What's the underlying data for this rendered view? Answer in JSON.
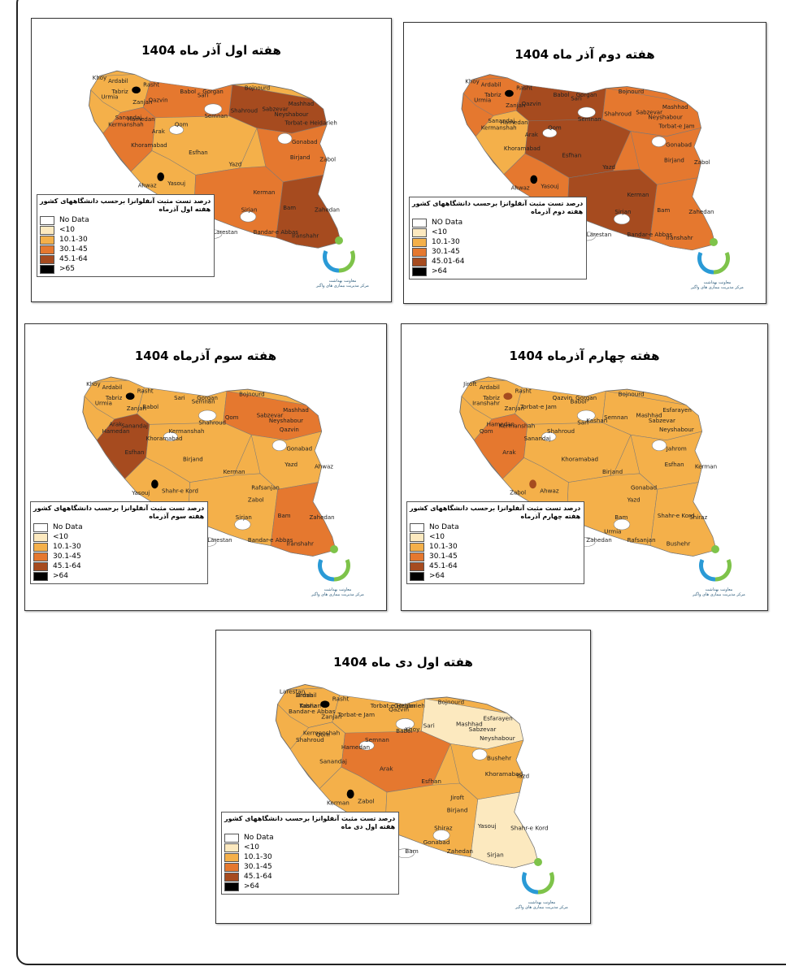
{
  "panels": [
    {
      "title": "هفته اول آذر ماه 1404",
      "legend_caption": "درصد تست مثبت آنفلوانزا برحسب دانشگاههای کشور",
      "legend_sub": "هفته اول آذرماه",
      "legend_items": [
        "No Data",
        "<10",
        "10.1-30",
        "30.1-45",
        "45.1-64",
        ">65"
      ],
      "cities": [
        "Ardabil",
        "Tabriz",
        "Rasht",
        "Zanjan",
        "Gorgan",
        "Bojnourd",
        "Mashhad",
        "Sabzevar",
        "Neyshabour",
        "Torbat-e Heidarieh",
        "Qazvin",
        "Babol",
        "Sari",
        "Semnan",
        "Shahroud",
        "Qom",
        "Kermanshah",
        "Hamedan",
        "Sanandaj",
        "Arak",
        "Khoramabad",
        "Esfhan",
        "Birjand",
        "Yazd",
        "Kerman",
        "Zabol",
        "Ahwaz",
        "Yasouj",
        "Shiraz",
        "Bam",
        "Zahedan",
        "Sirjan",
        "Larestan",
        "Bandar-e Abbas",
        "Iranshahr",
        "Gonabad",
        "Khoy",
        "Urmia"
      ]
    },
    {
      "title": "هفته دوم آذر ماه 1404",
      "legend_caption": "درصد تست مثبت آنفلوانزا برحسب دانشگاههای کشور",
      "legend_sub": "هفته دوم آذرماه",
      "legend_items": [
        "NO Data",
        "<10",
        "10.1-30",
        "30.1-45",
        "45.01-64",
        ">64"
      ],
      "cities": [
        "Ardabil",
        "Tabriz",
        "Rasht",
        "Zanjan",
        "Gorgan",
        "Bojnourd",
        "Mashhad",
        "Sabzevar",
        "Neyshabour",
        "Torbat-e Jam",
        "Qazvin",
        "Babol",
        "Sari",
        "Semnan",
        "Shahroud",
        "Qom",
        "Kermanshah",
        "Hamedan",
        "Sanandaj",
        "Arak",
        "Khoramabad",
        "Esfhan",
        "Birjand",
        "Yazd",
        "Kerman",
        "Zabol",
        "Ahwaz",
        "Yasouj",
        "Shiraz",
        "Bam",
        "Zahedan",
        "Sirjan",
        "Larestan",
        "Bandar-e Abbas",
        "Iranshahr",
        "Gonabad",
        "Khoy",
        "Urmia"
      ]
    },
    {
      "title": "هفته سوم آذرماه 1404",
      "legend_caption": "درصد تست مثبت آنفلوانزا برحسب دانشگاههای کشور",
      "legend_sub": "هفته سوم آذرماه",
      "legend_items": [
        "No Data",
        "<10",
        "10.1-30",
        "30.1-45",
        "45.1-64",
        ">64"
      ],
      "cities": [
        "Ardabil",
        "Tabriz",
        "Rasht",
        "Zanjan",
        "Gorgan",
        "Bojnourd",
        "Mashhad",
        "Sabzevar",
        "Neyshabour",
        "Qazvin",
        "Babol",
        "Sari",
        "Semnan",
        "Shahroud",
        "Qom",
        "Kermanshah",
        "Hamedan",
        "Sanandaj",
        "Arak",
        "Khoramabad",
        "Esfhan",
        "Birjand",
        "Yazd",
        "Kerman",
        "Zabol",
        "Ahwaz",
        "Yasouj",
        "Shahr-e Kord",
        "Shiraz",
        "Bam",
        "Zahedan",
        "Sirjan",
        "Larestan",
        "Bandar-e Abbas",
        "Iranshahr",
        "Gonabad",
        "Khoy",
        "Urmia",
        "Rafsanjan",
        "Bushehr"
      ]
    },
    {
      "title": "هفته چهارم آذرماه 1404",
      "legend_caption": "درصد تست مثبت آنفلوانزا برحسب دانشگاههای کشور",
      "legend_sub": "هفته چهارم آذرماه",
      "legend_items": [
        "No Data",
        "<10",
        "10.1-30",
        "30.1-45",
        "45.1-64",
        ">64"
      ],
      "cities": [
        "Ardabil",
        "Tabriz",
        "Rasht",
        "Zanjan",
        "Gorgan",
        "Bojnourd",
        "Esfarayen",
        "Mashhad",
        "Sabzevar",
        "Neyshabour",
        "Torbat-e Jam",
        "Qazvin",
        "Babol",
        "Sari",
        "Semnan",
        "Shahroud",
        "Qom",
        "Kermanshah",
        "Hamedan",
        "Sanandaj",
        "Arak",
        "Khoramabad",
        "Esfhan",
        "Birjand",
        "Yazd",
        "Kerman",
        "Zabol",
        "Ahwaz",
        "Yasouj",
        "Shahr-e Kord",
        "Shiraz",
        "Bam",
        "Zahedan",
        "Rafsanjan",
        "Bushehr",
        "Jahrom",
        "Jiroft",
        "Iranshahr",
        "Gonabad",
        "Khoy",
        "Urmia",
        "Kashan"
      ]
    },
    {
      "title": "هفته اول دی ماه 1404",
      "legend_caption": "درصد تست مثبت آنفلوانزا برحسب دانشگاههای کشور",
      "legend_sub": "هفته اول دی ماه",
      "legend_items": [
        "No Data",
        "<10",
        "10.1-30",
        "30.1-45",
        "45.1-64",
        ">64"
      ],
      "cities": [
        "Ardabil",
        "Tabriz",
        "Rasht",
        "Zanjan",
        "Gorgan",
        "Bojnourd",
        "Esfarayen",
        "Mashhad",
        "Sabzevar",
        "Neyshabour",
        "Torbat-e Jam",
        "Torbat-e Heidarieh",
        "Qazvin",
        "Babol",
        "Sari",
        "Semnan",
        "Shahroud",
        "Qom",
        "Kermanshah",
        "Hamedan",
        "Sanandaj",
        "Arak",
        "Khoramabad",
        "Esfhan",
        "Birjand",
        "Yazd",
        "Kerman",
        "Zabol",
        "Ahwaz",
        "Yasouj",
        "Shahr-e Kord",
        "Shiraz",
        "Bam",
        "Zahedan",
        "Sirjan",
        "Bushehr",
        "Larestan",
        "Bandar-e Abbas",
        "Jiroft",
        "Iranshahr",
        "Gonabad",
        "Khoy",
        "Urmia",
        "Kashan"
      ]
    }
  ],
  "logo_text": "معاونت بهداشت",
  "logo_subtext": "مرکز مدیریت بیماری های واگیر",
  "colors": {
    "no_data": "#ffffff",
    "lt10": "#fce9bf",
    "c10_30": "#f4b04a",
    "c30_45": "#e5782f",
    "c45_64": "#a64b1f",
    "gt64": "#000000",
    "logo_green": "#7ec34a",
    "logo_blue": "#2a9ad6"
  }
}
